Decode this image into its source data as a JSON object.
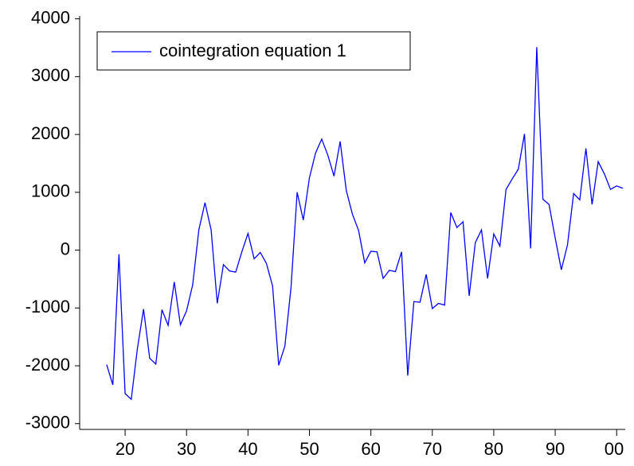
{
  "chart_data": {
    "type": "line",
    "x": [
      17,
      18,
      19,
      20,
      21,
      22,
      23,
      24,
      25,
      26,
      27,
      28,
      29,
      30,
      31,
      32,
      33,
      34,
      35,
      36,
      37,
      38,
      39,
      40,
      41,
      42,
      43,
      44,
      45,
      46,
      47,
      48,
      49,
      50,
      51,
      52,
      53,
      54,
      55,
      56,
      57,
      58,
      59,
      60,
      61,
      62,
      63,
      64,
      65,
      66,
      67,
      68,
      69,
      70,
      71,
      72,
      73,
      74,
      75,
      76,
      77,
      78,
      79,
      80,
      81,
      82,
      83,
      84,
      85,
      86,
      87,
      88,
      89,
      90,
      91,
      92,
      93,
      94,
      95,
      96,
      97,
      98,
      99,
      100,
      101
    ],
    "series": [
      {
        "name": "cointegration equation 1",
        "color": "#0000ff",
        "values": [
          -1980,
          -2330,
          -70,
          -2480,
          -2580,
          -1700,
          -1020,
          -1870,
          -1970,
          -1030,
          -1300,
          -550,
          -1290,
          -1050,
          -600,
          350,
          820,
          350,
          -920,
          -250,
          -360,
          -380,
          -30,
          290,
          -150,
          -40,
          -230,
          -620,
          -1990,
          -1660,
          -650,
          1000,
          520,
          1250,
          1680,
          1920,
          1640,
          1280,
          1880,
          1030,
          620,
          340,
          -220,
          -20,
          -30,
          -490,
          -350,
          -370,
          -30,
          -2170,
          -890,
          -900,
          -420,
          -1010,
          -920,
          -950,
          650,
          390,
          490,
          -790,
          130,
          350,
          -490,
          280,
          70,
          1050,
          1230,
          1400,
          2010,
          30,
          3510,
          880,
          790,
          210,
          -340,
          90,
          980,
          870,
          1760,
          790,
          1530,
          1320,
          1050,
          1110,
          1070
        ]
      }
    ],
    "xlim": [
      12.6,
      101.4
    ],
    "xticks": [
      20,
      30,
      40,
      50,
      60,
      70,
      80,
      90,
      {
        "value": 100,
        "label": "00"
      }
    ],
    "ylim": [
      -3100,
      4050
    ],
    "yticks": [
      -3000,
      -2000,
      -1000,
      0,
      1000,
      2000,
      3000,
      4000
    ],
    "legend": "top-left"
  }
}
